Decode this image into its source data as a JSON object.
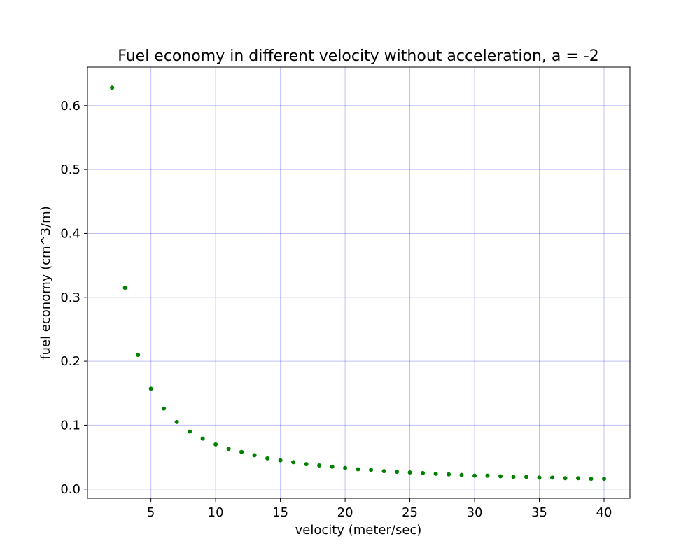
{
  "colors": {
    "point": "#008000",
    "grid": "#0000ff",
    "background": "#ffffff",
    "axis": "#000000"
  },
  "chart_data": {
    "type": "scatter",
    "title": "Fuel economy in different velocity without acceleration, a = -2",
    "xlabel": "velocity (meter/sec)",
    "ylabel": "fuel economy (cm^3/m)",
    "xlim": [
      0.1,
      42
    ],
    "ylim": [
      -0.0145,
      0.66
    ],
    "xticks": [
      5,
      10,
      15,
      20,
      25,
      30,
      35,
      40
    ],
    "yticks": [
      0.0,
      0.1,
      0.2,
      0.3,
      0.4,
      0.5,
      0.6
    ],
    "ytick_labels": [
      "0.0",
      "0.1",
      "0.2",
      "0.3",
      "0.4",
      "0.5",
      "0.6"
    ],
    "grid": true,
    "legend": false,
    "series": [
      {
        "x": [
          2,
          3,
          4,
          5,
          6,
          7,
          8,
          9,
          10,
          11,
          12,
          13,
          14,
          15,
          16,
          17,
          18,
          19,
          20,
          21,
          22,
          23,
          24,
          25,
          26,
          27,
          28,
          29,
          30,
          31,
          32,
          33,
          34,
          35,
          36,
          37,
          38,
          39,
          40
        ],
        "y": [
          0.628,
          0.315,
          0.21,
          0.157,
          0.126,
          0.105,
          0.09,
          0.079,
          0.07,
          0.063,
          0.058,
          0.053,
          0.048,
          0.045,
          0.042,
          0.039,
          0.037,
          0.035,
          0.033,
          0.031,
          0.03,
          0.028,
          0.027,
          0.026,
          0.025,
          0.024,
          0.023,
          0.022,
          0.021,
          0.021,
          0.02,
          0.019,
          0.019,
          0.018,
          0.018,
          0.017,
          0.017,
          0.016,
          0.016
        ]
      }
    ]
  }
}
